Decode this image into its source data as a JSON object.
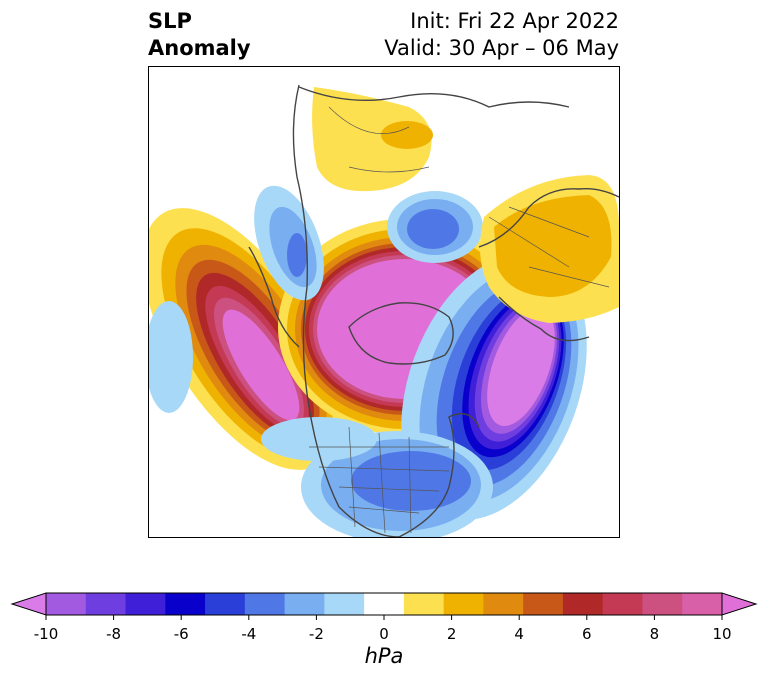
{
  "title": {
    "left_line1": "SLP",
    "left_line2": "Anomaly",
    "right_line1": "Init: Fri 22 Apr 2022",
    "right_line2": "Valid: 30 Apr – 06 May"
  },
  "colorbar": {
    "unit": "hPa",
    "ticks": [
      "-10",
      "-8",
      "-6",
      "-4",
      "-2",
      "0",
      "2",
      "4",
      "6",
      "8",
      "10"
    ],
    "colors": [
      "#d97ce8",
      "#a25ae0",
      "#6f3ee0",
      "#3f20d8",
      "#0a00cc",
      "#2a3fd8",
      "#4f78e6",
      "#79aff0",
      "#a8d8f8",
      "#ffffff",
      "#fde050",
      "#f0b200",
      "#e08a10",
      "#c85818",
      "#b02828",
      "#c43a55",
      "#cc5080",
      "#d860a8",
      "#e070d8"
    ],
    "extend": "both"
  },
  "map": {
    "projection": "polar stereographic, North Pole",
    "field": "sea level pressure anomaly",
    "features": [
      {
        "name": "positive anomaly over the Arctic / Canadian Archipelago",
        "peak": 10
      },
      {
        "name": "positive anomaly over Alaska / Bering Sea",
        "peak": 10
      },
      {
        "name": "negative anomaly over the North Atlantic",
        "peak": -10
      },
      {
        "name": "positive anomaly over Scandinavia / Europe",
        "peak": 3
      },
      {
        "name": "positive anomaly over central Siberia",
        "peak": 3
      },
      {
        "name": "negative anomaly over eastern North America",
        "peak": -3
      },
      {
        "name": "negative anomaly over Kamchatka",
        "peak": -3
      },
      {
        "name": "negative anomaly over the Kara Sea",
        "peak": -4
      }
    ]
  }
}
